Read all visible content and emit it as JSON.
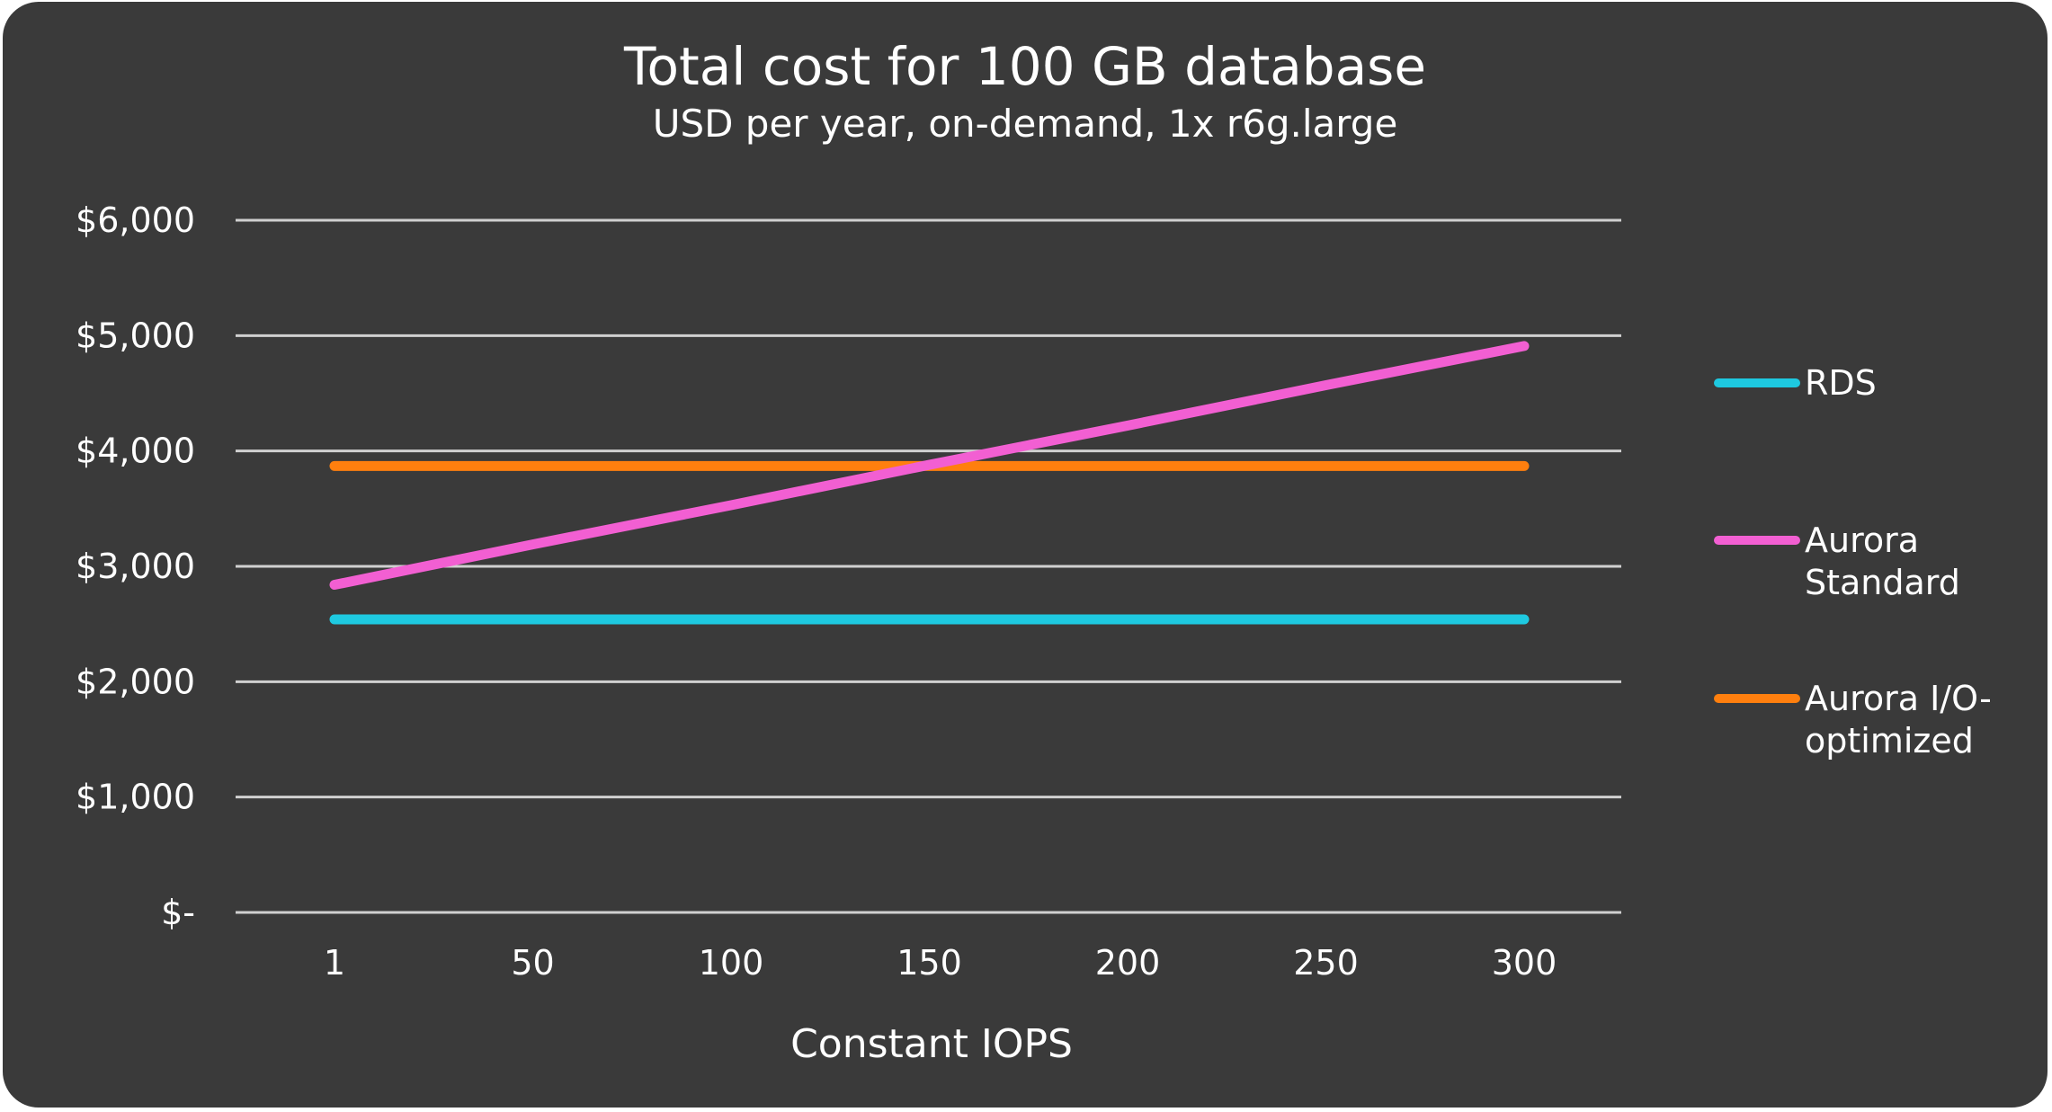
{
  "chart_data": {
    "type": "line",
    "title": "Total cost for 100 GB database",
    "subtitle": "USD per year, on-demand, 1x r6g.large",
    "xlabel": "Constant IOPS",
    "ylabel": "",
    "categories": [
      "1",
      "50",
      "100",
      "150",
      "200",
      "250",
      "300"
    ],
    "x": [
      1,
      50,
      100,
      150,
      200,
      250,
      300
    ],
    "ylim": [
      0,
      6000
    ],
    "yticks": [
      0,
      1000,
      2000,
      3000,
      4000,
      5000,
      6000
    ],
    "ytick_labels": [
      "$-",
      "$1,000",
      "$2,000",
      "$3,000",
      "$4,000",
      "$5,000",
      "$6,000"
    ],
    "grid": true,
    "legend_position": "right",
    "series": [
      {
        "name": "RDS",
        "legend_lines": [
          "RDS"
        ],
        "color": "#1ec9e0",
        "values": [
          2540,
          2540,
          2540,
          2540,
          2540,
          2540,
          2540
        ]
      },
      {
        "name": "Aurora Standard",
        "legend_lines": [
          "Aurora",
          "Standard"
        ],
        "color": "#f25fd2",
        "values": [
          2840,
          3190,
          3530,
          3880,
          4220,
          4570,
          4910
        ]
      },
      {
        "name": "Aurora I/O-optimized",
        "legend_lines": [
          "Aurora I/O-",
          "optimized"
        ],
        "color": "#ff7f0e",
        "values": [
          3870,
          3870,
          3870,
          3870,
          3870,
          3870,
          3870
        ]
      }
    ]
  }
}
